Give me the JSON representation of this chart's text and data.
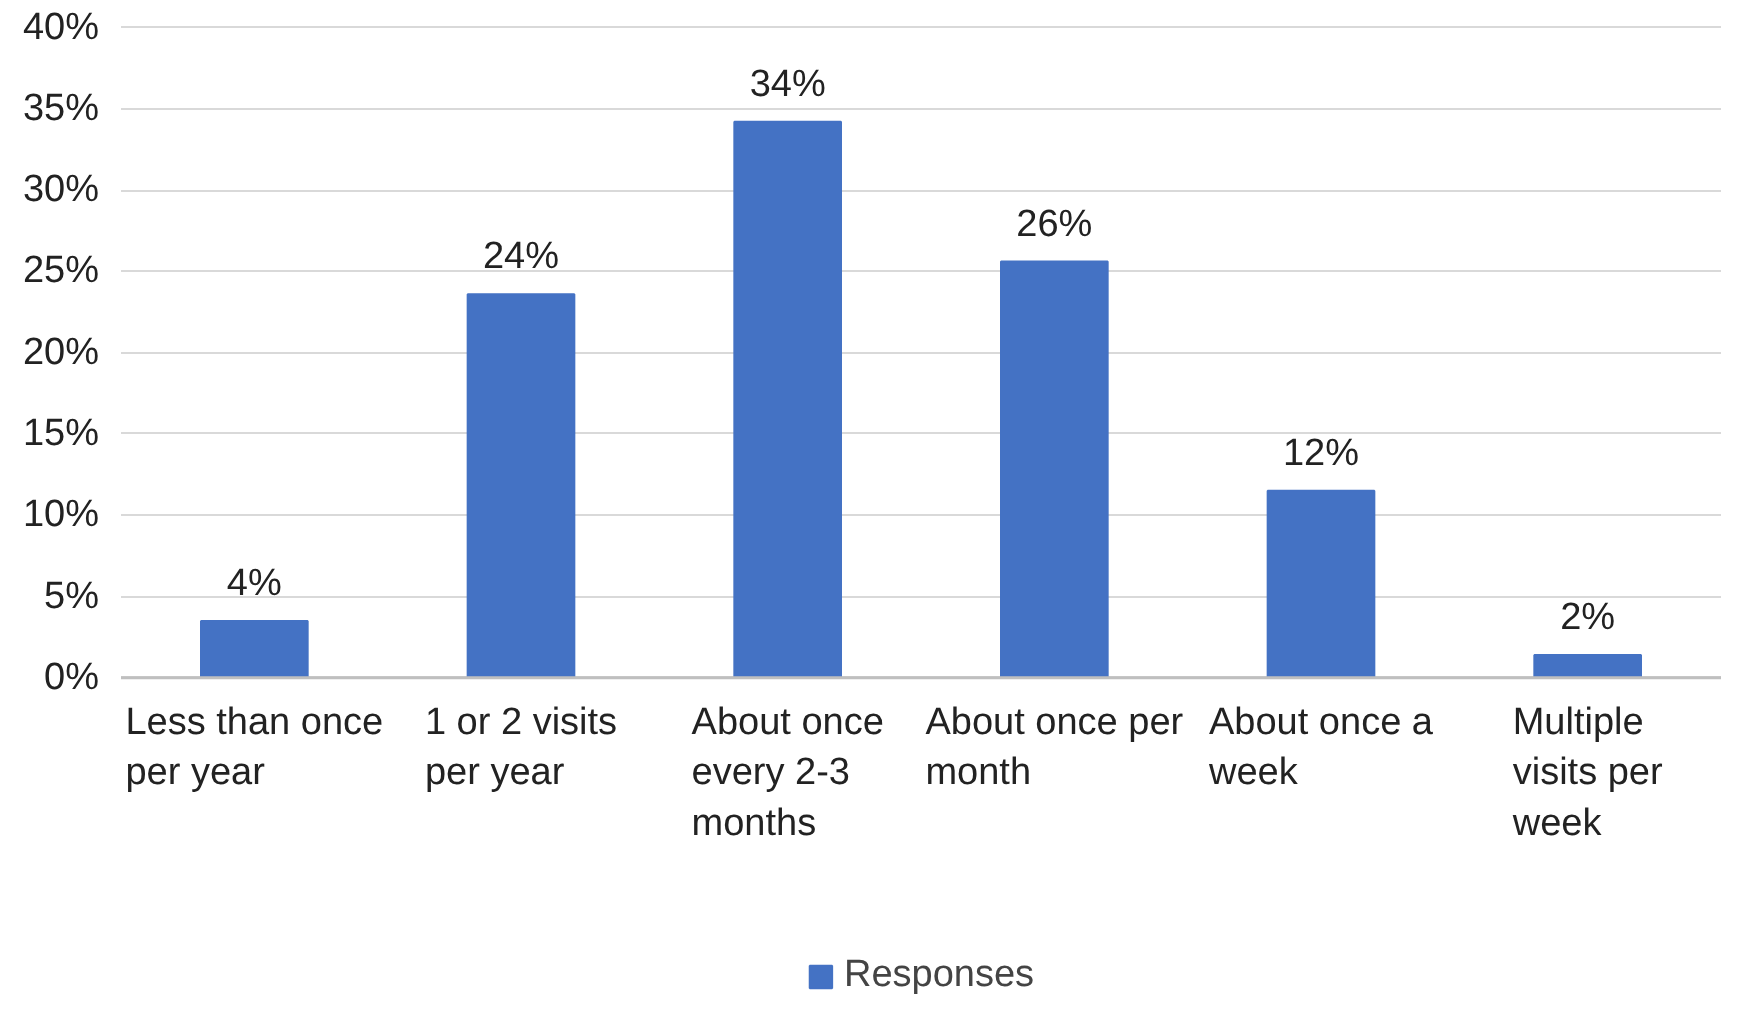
{
  "chart_data": {
    "type": "bar",
    "categories": [
      "Less than once per year",
      "1 or 2 visits per year",
      "About once every 2-3 months",
      "About once per month",
      "About once a week",
      "Multiple visits per week"
    ],
    "series": [
      {
        "name": "Responses",
        "color": "#4472c4",
        "values": [
          3.5,
          23.6,
          34.2,
          25.6,
          11.5,
          1.4
        ]
      }
    ],
    "value_labels": [
      "4%",
      "24%",
      "34%",
      "26%",
      "12%",
      "2%"
    ],
    "ylim": [
      0,
      40
    ],
    "yticks": [
      {
        "value": 0,
        "label": "0%"
      },
      {
        "value": 5,
        "label": "5%"
      },
      {
        "value": 10,
        "label": "10%"
      },
      {
        "value": 15,
        "label": "15%"
      },
      {
        "value": 20,
        "label": "20%"
      },
      {
        "value": 25,
        "label": "25%"
      },
      {
        "value": 30,
        "label": "30%"
      },
      {
        "value": 35,
        "label": "35%"
      },
      {
        "value": 40,
        "label": "40%"
      }
    ],
    "grid": "y",
    "legend": "bottom"
  }
}
